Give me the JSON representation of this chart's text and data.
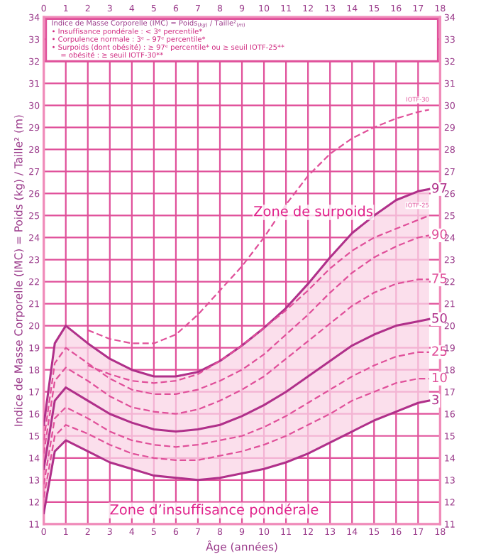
{
  "chart_data": {
    "type": "line",
    "xlabel": "Âge (années)",
    "ylabel": "Indice de Masse Corporelle (IMC) = Poids (kg) / Taille² (m)",
    "x": [
      0,
      0.5,
      1,
      2,
      3,
      4,
      5,
      6,
      7,
      8,
      9,
      10,
      11,
      12,
      13,
      14,
      15,
      16,
      17,
      17.5
    ],
    "series": [
      {
        "name": "97",
        "color": "#b0308a",
        "line_style": "solid",
        "values": [
          15.5,
          19.2,
          20.0,
          19.2,
          18.5,
          18.0,
          17.7,
          17.7,
          17.9,
          18.4,
          19.1,
          19.9,
          20.8,
          21.9,
          23.1,
          24.2,
          25.0,
          25.7,
          26.1,
          26.2
        ]
      },
      {
        "name": "IOTF-25",
        "color": "#e0509a",
        "line_style": "dashed",
        "x": [
          2,
          3,
          4,
          5,
          6,
          7,
          8,
          9,
          10,
          11,
          12,
          13,
          14,
          15,
          16,
          17,
          17.5
        ],
        "values": [
          18.2,
          17.8,
          17.5,
          17.4,
          17.5,
          17.8,
          18.4,
          19.1,
          19.9,
          20.7,
          21.6,
          22.6,
          23.4,
          24.0,
          24.4,
          24.8,
          25.0
        ]
      },
      {
        "name": "IOTF-30",
        "color": "#e0509a",
        "line_style": "dashed",
        "x": [
          2,
          3,
          4,
          5,
          6,
          7,
          8,
          9,
          10,
          11,
          12,
          13,
          14,
          15,
          16,
          17,
          17.5
        ],
        "values": [
          19.8,
          19.4,
          19.2,
          19.2,
          19.6,
          20.5,
          21.6,
          22.7,
          24.0,
          25.5,
          26.8,
          27.8,
          28.5,
          29.0,
          29.4,
          29.7,
          29.8
        ]
      },
      {
        "name": "90",
        "color": "#e0509a",
        "line_style": "dashed",
        "values": [
          14.8,
          18.3,
          19.0,
          18.3,
          17.6,
          17.1,
          16.9,
          16.9,
          17.1,
          17.5,
          18.0,
          18.7,
          19.6,
          20.5,
          21.5,
          22.4,
          23.1,
          23.6,
          24.0,
          24.1
        ]
      },
      {
        "name": "75",
        "color": "#e0509a",
        "line_style": "dashed",
        "values": [
          14.2,
          17.5,
          18.1,
          17.5,
          16.8,
          16.3,
          16.1,
          16.0,
          16.2,
          16.6,
          17.1,
          17.7,
          18.5,
          19.3,
          20.1,
          20.9,
          21.5,
          21.9,
          22.1,
          22.1
        ]
      },
      {
        "name": "50",
        "color": "#b0308a",
        "line_style": "solid",
        "values": [
          13.5,
          16.6,
          17.2,
          16.6,
          16.0,
          15.6,
          15.3,
          15.2,
          15.3,
          15.5,
          15.9,
          16.4,
          17.0,
          17.7,
          18.4,
          19.1,
          19.6,
          20.0,
          20.2,
          20.3
        ],
        "lower": [
          11.5,
          14.3,
          14.8,
          14.3,
          13.8,
          13.5,
          13.2,
          13.1,
          13.0,
          13.1,
          13.3,
          13.5,
          13.8,
          14.2,
          14.7,
          15.2,
          15.7,
          16.1,
          16.5,
          16.6
        ],
        "upper": [
          15.5,
          19.2,
          20.0,
          19.2,
          18.5,
          18.0,
          17.7,
          17.7,
          17.9,
          18.4,
          19.1,
          19.9,
          20.8,
          21.9,
          23.1,
          24.2,
          25.0,
          25.7,
          26.1,
          26.2
        ]
      },
      {
        "name": "25",
        "color": "#e0509a",
        "line_style": "dashed",
        "values": [
          12.8,
          15.8,
          16.3,
          15.8,
          15.2,
          14.8,
          14.6,
          14.5,
          14.6,
          14.8,
          15.0,
          15.4,
          15.9,
          16.5,
          17.1,
          17.7,
          18.2,
          18.6,
          18.8,
          18.8
        ]
      },
      {
        "name": "10",
        "color": "#e0509a",
        "line_style": "dashed",
        "values": [
          12.2,
          15.0,
          15.5,
          15.1,
          14.6,
          14.2,
          14.0,
          13.9,
          13.9,
          14.1,
          14.3,
          14.6,
          15.0,
          15.5,
          16.0,
          16.6,
          17.0,
          17.4,
          17.6,
          17.6
        ]
      },
      {
        "name": "3",
        "color": "#b0308a",
        "line_style": "solid",
        "values": [
          11.5,
          14.3,
          14.8,
          14.3,
          13.8,
          13.5,
          13.2,
          13.1,
          13.0,
          13.1,
          13.3,
          13.5,
          13.8,
          14.2,
          14.7,
          15.2,
          15.7,
          16.1,
          16.5,
          16.6
        ]
      }
    ],
    "annotations": [
      "Indice de Masse Corporelle (IMC) = Poids$_{(kg)}$ / Taille²$_{(m)}$",
      "• Insuffisance pondérale : < 3ᵉ percentile*",
      "• Corpulence normale : 3ᵉ – 97ᵉ percentile*",
      "• Surpoids (dont obésité) : ≥ 97ᵉ percentile* ou ≥ seuil IOTF-25**",
      "    = obésité : ≥ seuil IOTF-30**",
      "Zone de surpoids",
      "Zone d’insuffisance pondérale"
    ],
    "xlim": [
      0,
      18
    ],
    "xticks": [
      0,
      1,
      2,
      3,
      4,
      5,
      6,
      7,
      8,
      9,
      10,
      11,
      12,
      13,
      14,
      15,
      16,
      17,
      18
    ],
    "x2lim": [
      0,
      18
    ],
    "x2ticks": [
      0,
      1,
      2,
      3,
      4,
      5,
      6,
      7,
      8,
      9,
      10,
      11,
      12,
      13,
      14,
      15,
      16,
      17,
      18
    ],
    "ylim": [
      11,
      34
    ],
    "yticks": [
      11,
      12,
      13,
      14,
      15,
      16,
      17,
      18,
      19,
      20,
      21,
      22,
      23,
      24,
      25,
      26,
      27,
      28,
      29,
      30,
      31,
      32,
      33,
      34
    ],
    "y2lim": [
      11,
      34
    ],
    "y2ticks": [
      11,
      12,
      13,
      14,
      15,
      16,
      17,
      18,
      19,
      20,
      21,
      22,
      23,
      24,
      25,
      26,
      27,
      28,
      29,
      30,
      31,
      32,
      33,
      34
    ],
    "grid": true,
    "legend": false
  }
}
